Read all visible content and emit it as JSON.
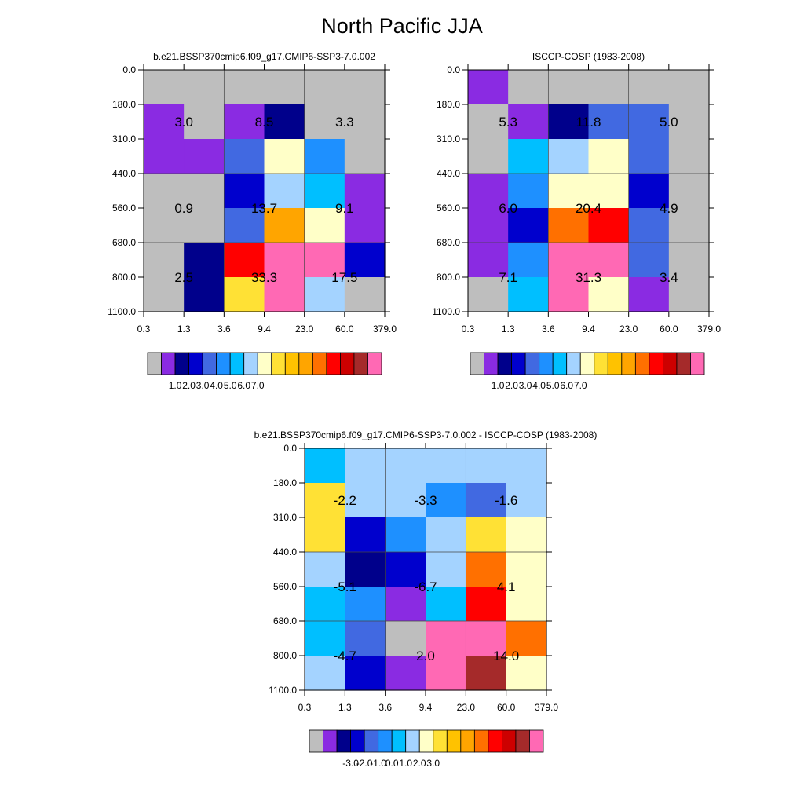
{
  "title": "North Pacific JJA",
  "palette": [
    "#bebebe",
    "#8a2be2",
    "#00008b",
    "#0000cd",
    "#4169e1",
    "#1e90ff",
    "#00bfff",
    "#a4d3ff",
    "#ffffc8",
    "#ffe135",
    "#ffc200",
    "#ffa500",
    "#ff7000",
    "#ff0000",
    "#cd0000",
    "#a52a2a",
    "#ff69b4"
  ],
  "chart_data": [
    {
      "type": "heatmap",
      "title": "b.e21.BSSP370cmip6.f09_g17.CMIP6-SSP3-7.0.002",
      "xticks": [
        "0.3",
        "1.3",
        "3.6",
        "9.4",
        "23.0",
        "60.0",
        "379.0"
      ],
      "yticks": [
        "0.0",
        "180.0",
        "310.0",
        "440.0",
        "560.0",
        "680.0",
        "800.0",
        "1100.0"
      ],
      "cells": [
        [
          0,
          0,
          0,
          0,
          0,
          0
        ],
        [
          1,
          0,
          1,
          2,
          0,
          0
        ],
        [
          1,
          1,
          4,
          8,
          5,
          0
        ],
        [
          0,
          0,
          3,
          7,
          6,
          1
        ],
        [
          0,
          0,
          4,
          11,
          8,
          1
        ],
        [
          0,
          2,
          13,
          16,
          16,
          3
        ],
        [
          0,
          2,
          9,
          16,
          7,
          0
        ]
      ],
      "labels": [
        {
          "col": 0.5,
          "row": 1.5,
          "text": "3.0"
        },
        {
          "col": 2.5,
          "row": 1.5,
          "text": "8.5"
        },
        {
          "col": 4.5,
          "row": 1.5,
          "text": "3.3"
        },
        {
          "col": 0.5,
          "row": 4,
          "text": "0.9"
        },
        {
          "col": 2.5,
          "row": 4,
          "text": "13.7"
        },
        {
          "col": 4.5,
          "row": 4,
          "text": "9.1"
        },
        {
          "col": 0.5,
          "row": 6,
          "text": "2.5"
        },
        {
          "col": 2.5,
          "row": 6,
          "text": "33.3"
        },
        {
          "col": 4.5,
          "row": 6,
          "text": "17.5"
        }
      ],
      "colorbar": {
        "labels": [
          "1.0",
          "2.0",
          "3.0",
          "4.0",
          "5.0",
          "6.0",
          "7.0"
        ],
        "positions": [
          1,
          2,
          3,
          4,
          5,
          6,
          7
        ]
      }
    },
    {
      "type": "heatmap",
      "title": "ISCCP-COSP (1983-2008)",
      "xticks": [
        "0.3",
        "1.3",
        "3.6",
        "9.4",
        "23.0",
        "60.0",
        "379.0"
      ],
      "yticks": [
        "0.0",
        "180.0",
        "310.0",
        "440.0",
        "560.0",
        "680.0",
        "800.0",
        "1100.0"
      ],
      "cells": [
        [
          1,
          0,
          0,
          0,
          0,
          0
        ],
        [
          0,
          1,
          2,
          4,
          4,
          0
        ],
        [
          0,
          6,
          7,
          8,
          4,
          0
        ],
        [
          1,
          5,
          8,
          8,
          3,
          0
        ],
        [
          1,
          3,
          12,
          13,
          4,
          0
        ],
        [
          1,
          5,
          16,
          16,
          4,
          0
        ],
        [
          0,
          6,
          16,
          8,
          1,
          0
        ]
      ],
      "labels": [
        {
          "col": 0.5,
          "row": 1.5,
          "text": "5.3"
        },
        {
          "col": 2.5,
          "row": 1.5,
          "text": "11.8"
        },
        {
          "col": 4.5,
          "row": 1.5,
          "text": "5.0"
        },
        {
          "col": 0.5,
          "row": 4,
          "text": "6.0"
        },
        {
          "col": 2.5,
          "row": 4,
          "text": "20.4"
        },
        {
          "col": 4.5,
          "row": 4,
          "text": "4.9"
        },
        {
          "col": 0.5,
          "row": 6,
          "text": "7.1"
        },
        {
          "col": 2.5,
          "row": 6,
          "text": "31.3"
        },
        {
          "col": 4.5,
          "row": 6,
          "text": "3.4"
        }
      ],
      "colorbar": {
        "labels": [
          "1.0",
          "2.0",
          "3.0",
          "4.0",
          "5.0",
          "6.0",
          "7.0"
        ],
        "positions": [
          1,
          2,
          3,
          4,
          5,
          6,
          7
        ]
      }
    },
    {
      "type": "heatmap",
      "title": "b.e21.BSSP370cmip6.f09_g17.CMIP6-SSP3-7.0.002 - ISCCP-COSP (1983-2008)",
      "xticks": [
        "0.3",
        "1.3",
        "3.6",
        "9.4",
        "23.0",
        "60.0",
        "379.0"
      ],
      "yticks": [
        "0.0",
        "180.0",
        "310.0",
        "440.0",
        "560.0",
        "680.0",
        "800.0",
        "1100.0"
      ],
      "cells": [
        [
          6,
          7,
          7,
          7,
          7,
          7
        ],
        [
          9,
          7,
          7,
          5,
          4,
          7
        ],
        [
          9,
          3,
          5,
          7,
          9,
          8
        ],
        [
          7,
          2,
          3,
          7,
          12,
          8
        ],
        [
          6,
          5,
          1,
          6,
          13,
          8
        ],
        [
          6,
          4,
          0,
          16,
          16,
          12
        ],
        [
          7,
          3,
          1,
          16,
          15,
          8
        ]
      ],
      "labels": [
        {
          "col": 0.5,
          "row": 1.5,
          "text": "-2.2"
        },
        {
          "col": 2.5,
          "row": 1.5,
          "text": "-3.3"
        },
        {
          "col": 4.5,
          "row": 1.5,
          "text": "-1.6"
        },
        {
          "col": 0.5,
          "row": 4,
          "text": "-5.1"
        },
        {
          "col": 2.5,
          "row": 4,
          "text": "-6.7"
        },
        {
          "col": 4.5,
          "row": 4,
          "text": "4.1"
        },
        {
          "col": 0.5,
          "row": 6,
          "text": "-4.7"
        },
        {
          "col": 2.5,
          "row": 6,
          "text": "2.0"
        },
        {
          "col": 4.5,
          "row": 6,
          "text": "14.0"
        }
      ],
      "colorbar": {
        "labels": [
          "-3.0",
          "-2.0",
          "-1.0",
          "0.0",
          "1.0",
          "2.0",
          "3.0"
        ],
        "positions": [
          2,
          3,
          4,
          5,
          6,
          7,
          8
        ]
      }
    }
  ]
}
